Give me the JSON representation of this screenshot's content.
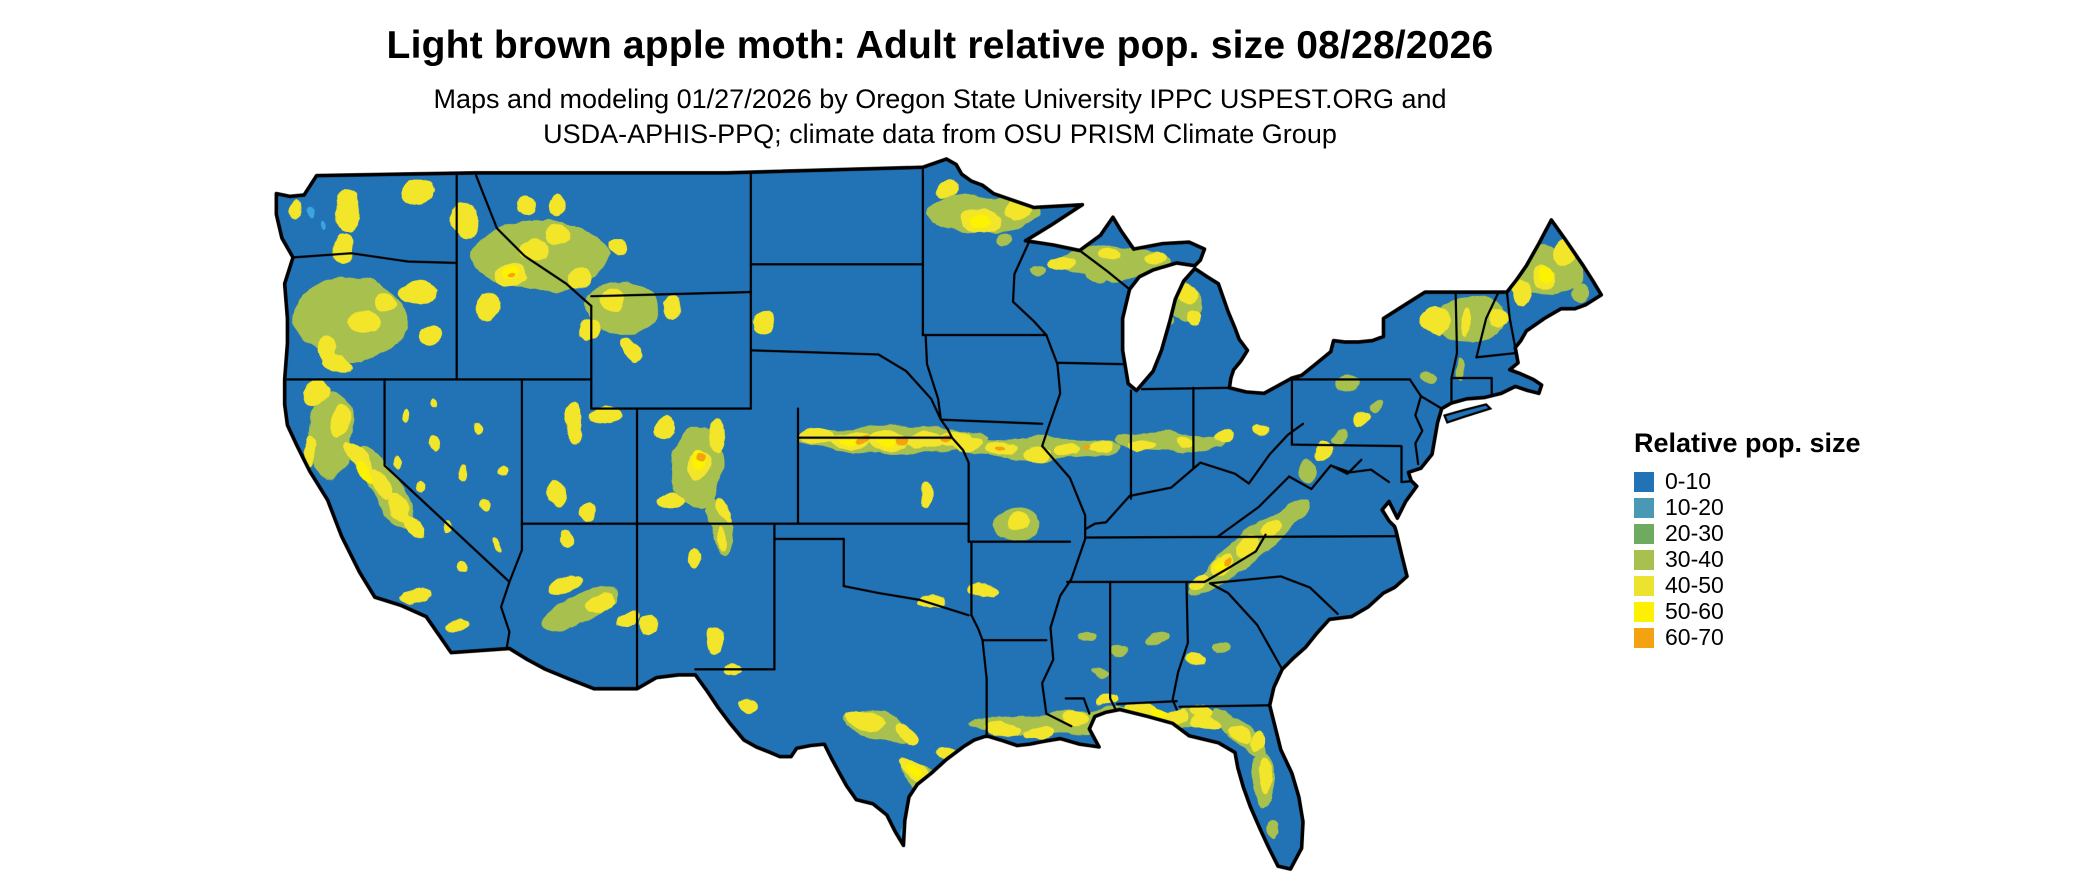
{
  "header": {
    "title": "Light brown apple moth: Adult relative pop. size 08/28/2026",
    "subtitle_line1": "Maps and modeling 01/27/2026 by Oregon State University IPPC USPEST.ORG and",
    "subtitle_line2": "USDA-APHIS-PPQ; climate data from OSU PRISM Climate Group"
  },
  "legend": {
    "title": "Relative pop. size",
    "entries": [
      {
        "label": "0-10",
        "color": "#2272B6"
      },
      {
        "label": "10-20",
        "color": "#4A99B4"
      },
      {
        "label": "20-30",
        "color": "#6FAA61"
      },
      {
        "label": "30-40",
        "color": "#A8C04E"
      },
      {
        "label": "40-50",
        "color": "#EBE32F"
      },
      {
        "label": "50-60",
        "color": "#FDF100"
      },
      {
        "label": "60-70",
        "color": "#F2A30F"
      }
    ]
  },
  "map": {
    "land_base_color": "#2272B6",
    "border_color": "#000000",
    "water_color": "#FFFFFF",
    "palette": {
      "y": "#F3E52B",
      "b": "#FDF200",
      "g": "#A8C04E",
      "o": "#F2A30F",
      "c": "#3AA5DC"
    }
  }
}
